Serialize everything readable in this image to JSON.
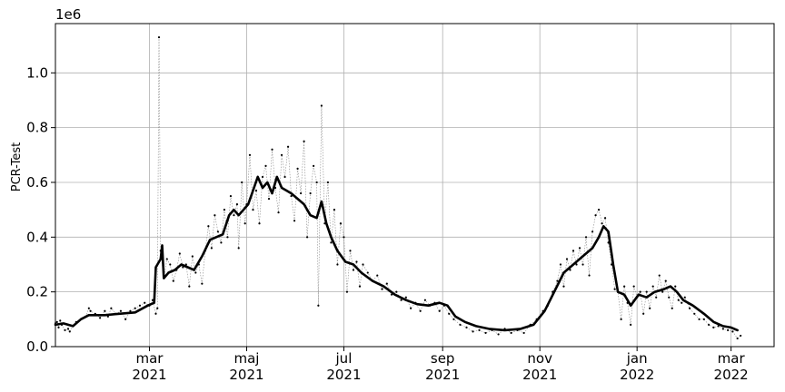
{
  "chart_data": {
    "type": "line",
    "ylabel": "PCR-Test",
    "y_offset_label": "1e6",
    "ylim": [
      0,
      1.18
    ],
    "yticks": [
      0.0,
      0.2,
      0.4,
      0.6,
      0.8,
      1.0
    ],
    "ytick_labels": [
      "0.0",
      "0.2",
      "0.4",
      "0.6",
      "0.8",
      "1.0"
    ],
    "xlim": [
      "2021-01-01",
      "2022-03-28"
    ],
    "xticks": [
      {
        "date": "2021-03-01",
        "month": "mar",
        "year": "2021"
      },
      {
        "date": "2021-05-01",
        "month": "maj",
        "year": "2021"
      },
      {
        "date": "2021-07-01",
        "month": "jul",
        "year": "2021"
      },
      {
        "date": "2021-09-01",
        "month": "sep",
        "year": "2021"
      },
      {
        "date": "2021-11-01",
        "month": "nov",
        "year": "2021"
      },
      {
        "date": "2022-01-01",
        "month": "jan",
        "year": "2022"
      },
      {
        "date": "2022-03-01",
        "month": "mar",
        "year": "2022"
      }
    ],
    "grid": true,
    "series": [
      {
        "style": "daily values, thin dotted grey line with small black point markers",
        "points": [
          [
            "2021-01-01",
            0.085
          ],
          [
            "2021-01-02",
            0.09
          ],
          [
            "2021-01-03",
            0.07
          ],
          [
            "2021-01-04",
            0.095
          ],
          [
            "2021-01-05",
            0.08
          ],
          [
            "2021-01-07",
            0.06
          ],
          [
            "2021-01-09",
            0.065
          ],
          [
            "2021-01-10",
            0.055
          ],
          [
            "2021-01-12",
            0.075
          ],
          [
            "2021-01-14",
            0.09
          ],
          [
            "2021-01-17",
            0.1
          ],
          [
            "2021-01-20",
            0.11
          ],
          [
            "2021-01-22",
            0.14
          ],
          [
            "2021-01-23",
            0.13
          ],
          [
            "2021-01-26",
            0.12
          ],
          [
            "2021-01-29",
            0.105
          ],
          [
            "2021-02-01",
            0.13
          ],
          [
            "2021-02-03",
            0.11
          ],
          [
            "2021-02-05",
            0.14
          ],
          [
            "2021-02-08",
            0.12
          ],
          [
            "2021-02-11",
            0.13
          ],
          [
            "2021-02-14",
            0.1
          ],
          [
            "2021-02-17",
            0.13
          ],
          [
            "2021-02-20",
            0.14
          ],
          [
            "2021-02-23",
            0.15
          ],
          [
            "2021-02-26",
            0.16
          ],
          [
            "2021-03-01",
            0.15
          ],
          [
            "2021-03-03",
            0.17
          ],
          [
            "2021-03-05",
            0.12
          ],
          [
            "2021-03-06",
            0.14
          ],
          [
            "2021-03-07",
            1.13
          ],
          [
            "2021-03-08",
            0.35
          ],
          [
            "2021-03-10",
            0.25
          ],
          [
            "2021-03-12",
            0.32
          ],
          [
            "2021-03-14",
            0.3
          ],
          [
            "2021-03-16",
            0.24
          ],
          [
            "2021-03-18",
            0.28
          ],
          [
            "2021-03-20",
            0.34
          ],
          [
            "2021-03-22",
            0.29
          ],
          [
            "2021-03-24",
            0.3
          ],
          [
            "2021-03-26",
            0.22
          ],
          [
            "2021-03-28",
            0.33
          ],
          [
            "2021-03-30",
            0.27
          ],
          [
            "2021-04-01",
            0.3
          ],
          [
            "2021-04-03",
            0.23
          ],
          [
            "2021-04-05",
            0.35
          ],
          [
            "2021-04-07",
            0.44
          ],
          [
            "2021-04-09",
            0.36
          ],
          [
            "2021-04-11",
            0.48
          ],
          [
            "2021-04-13",
            0.42
          ],
          [
            "2021-04-15",
            0.38
          ],
          [
            "2021-04-17",
            0.5
          ],
          [
            "2021-04-19",
            0.4
          ],
          [
            "2021-04-21",
            0.55
          ],
          [
            "2021-04-23",
            0.48
          ],
          [
            "2021-04-25",
            0.52
          ],
          [
            "2021-04-26",
            0.36
          ],
          [
            "2021-04-28",
            0.6
          ],
          [
            "2021-04-30",
            0.45
          ],
          [
            "2021-05-01",
            0.52
          ],
          [
            "2021-05-03",
            0.7
          ],
          [
            "2021-05-05",
            0.5
          ],
          [
            "2021-05-07",
            0.57
          ],
          [
            "2021-05-09",
            0.45
          ],
          [
            "2021-05-11",
            0.62
          ],
          [
            "2021-05-13",
            0.66
          ],
          [
            "2021-05-15",
            0.54
          ],
          [
            "2021-05-17",
            0.72
          ],
          [
            "2021-05-19",
            0.58
          ],
          [
            "2021-05-21",
            0.49
          ],
          [
            "2021-05-23",
            0.7
          ],
          [
            "2021-05-25",
            0.62
          ],
          [
            "2021-05-27",
            0.73
          ],
          [
            "2021-05-29",
            0.55
          ],
          [
            "2021-05-31",
            0.46
          ],
          [
            "2021-06-02",
            0.65
          ],
          [
            "2021-06-04",
            0.56
          ],
          [
            "2021-06-06",
            0.75
          ],
          [
            "2021-06-08",
            0.4
          ],
          [
            "2021-06-10",
            0.56
          ],
          [
            "2021-06-12",
            0.66
          ],
          [
            "2021-06-14",
            0.6
          ],
          [
            "2021-06-15",
            0.15
          ],
          [
            "2021-06-17",
            0.88
          ],
          [
            "2021-06-19",
            0.45
          ],
          [
            "2021-06-21",
            0.6
          ],
          [
            "2021-06-23",
            0.38
          ],
          [
            "2021-06-25",
            0.5
          ],
          [
            "2021-06-27",
            0.3
          ],
          [
            "2021-06-29",
            0.45
          ],
          [
            "2021-07-01",
            0.4
          ],
          [
            "2021-07-03",
            0.2
          ],
          [
            "2021-07-05",
            0.35
          ],
          [
            "2021-07-07",
            0.28
          ],
          [
            "2021-07-09",
            0.31
          ],
          [
            "2021-07-11",
            0.22
          ],
          [
            "2021-07-13",
            0.3
          ],
          [
            "2021-07-16",
            0.27
          ],
          [
            "2021-07-19",
            0.24
          ],
          [
            "2021-07-22",
            0.26
          ],
          [
            "2021-07-25",
            0.21
          ],
          [
            "2021-07-28",
            0.23
          ],
          [
            "2021-07-31",
            0.19
          ],
          [
            "2021-08-03",
            0.2
          ],
          [
            "2021-08-06",
            0.17
          ],
          [
            "2021-08-09",
            0.18
          ],
          [
            "2021-08-12",
            0.14
          ],
          [
            "2021-08-15",
            0.16
          ],
          [
            "2021-08-18",
            0.13
          ],
          [
            "2021-08-21",
            0.17
          ],
          [
            "2021-08-24",
            0.15
          ],
          [
            "2021-08-27",
            0.16
          ],
          [
            "2021-08-30",
            0.13
          ],
          [
            "2021-09-02",
            0.15
          ],
          [
            "2021-09-05",
            0.12
          ],
          [
            "2021-09-08",
            0.1
          ],
          [
            "2021-09-12",
            0.08
          ],
          [
            "2021-09-16",
            0.07
          ],
          [
            "2021-09-20",
            0.055
          ],
          [
            "2021-09-24",
            0.06
          ],
          [
            "2021-09-28",
            0.05
          ],
          [
            "2021-10-02",
            0.06
          ],
          [
            "2021-10-06",
            0.045
          ],
          [
            "2021-10-10",
            0.065
          ],
          [
            "2021-10-14",
            0.05
          ],
          [
            "2021-10-18",
            0.06
          ],
          [
            "2021-10-22",
            0.05
          ],
          [
            "2021-10-26",
            0.08
          ],
          [
            "2021-10-30",
            0.1
          ],
          [
            "2021-11-03",
            0.13
          ],
          [
            "2021-11-06",
            0.15
          ],
          [
            "2021-11-09",
            0.2
          ],
          [
            "2021-11-12",
            0.24
          ],
          [
            "2021-11-14",
            0.3
          ],
          [
            "2021-11-16",
            0.22
          ],
          [
            "2021-11-18",
            0.32
          ],
          [
            "2021-11-20",
            0.28
          ],
          [
            "2021-11-22",
            0.35
          ],
          [
            "2021-11-24",
            0.3
          ],
          [
            "2021-11-26",
            0.36
          ],
          [
            "2021-11-28",
            0.3
          ],
          [
            "2021-11-30",
            0.4
          ],
          [
            "2021-12-02",
            0.26
          ],
          [
            "2021-12-04",
            0.42
          ],
          [
            "2021-12-06",
            0.48
          ],
          [
            "2021-12-08",
            0.5
          ],
          [
            "2021-12-10",
            0.45
          ],
          [
            "2021-12-12",
            0.47
          ],
          [
            "2021-12-14",
            0.38
          ],
          [
            "2021-12-16",
            0.3
          ],
          [
            "2021-12-18",
            0.21
          ],
          [
            "2021-12-20",
            0.2
          ],
          [
            "2021-12-22",
            0.1
          ],
          [
            "2021-12-24",
            0.22
          ],
          [
            "2021-12-26",
            0.16
          ],
          [
            "2021-12-28",
            0.08
          ],
          [
            "2021-12-30",
            0.22
          ],
          [
            "2022-01-01",
            0.18
          ],
          [
            "2022-01-03",
            0.2
          ],
          [
            "2022-01-05",
            0.12
          ],
          [
            "2022-01-07",
            0.2
          ],
          [
            "2022-01-09",
            0.14
          ],
          [
            "2022-01-11",
            0.22
          ],
          [
            "2022-01-13",
            0.18
          ],
          [
            "2022-01-15",
            0.26
          ],
          [
            "2022-01-17",
            0.2
          ],
          [
            "2022-01-19",
            0.24
          ],
          [
            "2022-01-21",
            0.18
          ],
          [
            "2022-01-23",
            0.14
          ],
          [
            "2022-01-25",
            0.22
          ],
          [
            "2022-01-27",
            0.17
          ],
          [
            "2022-01-29",
            0.16
          ],
          [
            "2022-01-31",
            0.18
          ],
          [
            "2022-02-03",
            0.14
          ],
          [
            "2022-02-06",
            0.12
          ],
          [
            "2022-02-09",
            0.1
          ],
          [
            "2022-02-12",
            0.1
          ],
          [
            "2022-02-15",
            0.08
          ],
          [
            "2022-02-18",
            0.07
          ],
          [
            "2022-02-21",
            0.075
          ],
          [
            "2022-02-24",
            0.065
          ],
          [
            "2022-02-27",
            0.06
          ],
          [
            "2022-03-02",
            0.055
          ],
          [
            "2022-03-05",
            0.03
          ],
          [
            "2022-03-07",
            0.04
          ]
        ]
      },
      {
        "style": "7-day average, thick black line",
        "points": [
          [
            "2021-01-01",
            0.08
          ],
          [
            "2021-01-06",
            0.085
          ],
          [
            "2021-01-12",
            0.075
          ],
          [
            "2021-01-17",
            0.1
          ],
          [
            "2021-01-22",
            0.115
          ],
          [
            "2021-02-01",
            0.115
          ],
          [
            "2021-02-10",
            0.12
          ],
          [
            "2021-02-20",
            0.125
          ],
          [
            "2021-02-28",
            0.15
          ],
          [
            "2021-03-04",
            0.16
          ],
          [
            "2021-03-05",
            0.29
          ],
          [
            "2021-03-08",
            0.32
          ],
          [
            "2021-03-09",
            0.37
          ],
          [
            "2021-03-10",
            0.25
          ],
          [
            "2021-03-13",
            0.27
          ],
          [
            "2021-03-17",
            0.28
          ],
          [
            "2021-03-21",
            0.3
          ],
          [
            "2021-03-25",
            0.29
          ],
          [
            "2021-03-29",
            0.28
          ],
          [
            "2021-04-03",
            0.33
          ],
          [
            "2021-04-08",
            0.39
          ],
          [
            "2021-04-12",
            0.4
          ],
          [
            "2021-04-16",
            0.41
          ],
          [
            "2021-04-20",
            0.48
          ],
          [
            "2021-04-23",
            0.5
          ],
          [
            "2021-04-26",
            0.48
          ],
          [
            "2021-04-29",
            0.5
          ],
          [
            "2021-05-02",
            0.52
          ],
          [
            "2021-05-05",
            0.57
          ],
          [
            "2021-05-08",
            0.62
          ],
          [
            "2021-05-11",
            0.58
          ],
          [
            "2021-05-14",
            0.6
          ],
          [
            "2021-05-17",
            0.56
          ],
          [
            "2021-05-20",
            0.62
          ],
          [
            "2021-05-23",
            0.58
          ],
          [
            "2021-05-26",
            0.57
          ],
          [
            "2021-05-29",
            0.56
          ],
          [
            "2021-06-02",
            0.54
          ],
          [
            "2021-06-06",
            0.52
          ],
          [
            "2021-06-10",
            0.48
          ],
          [
            "2021-06-14",
            0.47
          ],
          [
            "2021-06-17",
            0.53
          ],
          [
            "2021-06-20",
            0.45
          ],
          [
            "2021-06-23",
            0.4
          ],
          [
            "2021-06-27",
            0.35
          ],
          [
            "2021-07-02",
            0.31
          ],
          [
            "2021-07-07",
            0.3
          ],
          [
            "2021-07-12",
            0.27
          ],
          [
            "2021-07-19",
            0.24
          ],
          [
            "2021-07-26",
            0.22
          ],
          [
            "2021-08-02",
            0.19
          ],
          [
            "2021-08-09",
            0.17
          ],
          [
            "2021-08-16",
            0.155
          ],
          [
            "2021-08-23",
            0.15
          ],
          [
            "2021-08-30",
            0.16
          ],
          [
            "2021-09-04",
            0.15
          ],
          [
            "2021-09-09",
            0.11
          ],
          [
            "2021-09-15",
            0.09
          ],
          [
            "2021-09-22",
            0.075
          ],
          [
            "2021-09-30",
            0.065
          ],
          [
            "2021-10-10",
            0.06
          ],
          [
            "2021-10-20",
            0.065
          ],
          [
            "2021-10-28",
            0.08
          ],
          [
            "2021-11-04",
            0.13
          ],
          [
            "2021-11-10",
            0.2
          ],
          [
            "2021-11-16",
            0.27
          ],
          [
            "2021-11-22",
            0.3
          ],
          [
            "2021-11-28",
            0.33
          ],
          [
            "2021-12-04",
            0.36
          ],
          [
            "2021-12-08",
            0.4
          ],
          [
            "2021-12-11",
            0.44
          ],
          [
            "2021-12-14",
            0.42
          ],
          [
            "2021-12-17",
            0.3
          ],
          [
            "2021-12-20",
            0.2
          ],
          [
            "2021-12-24",
            0.19
          ],
          [
            "2021-12-28",
            0.15
          ],
          [
            "2022-01-02",
            0.19
          ],
          [
            "2022-01-07",
            0.18
          ],
          [
            "2022-01-12",
            0.2
          ],
          [
            "2022-01-18",
            0.21
          ],
          [
            "2022-01-22",
            0.22
          ],
          [
            "2022-01-26",
            0.2
          ],
          [
            "2022-01-30",
            0.17
          ],
          [
            "2022-02-05",
            0.15
          ],
          [
            "2022-02-12",
            0.12
          ],
          [
            "2022-02-18",
            0.09
          ],
          [
            "2022-02-24",
            0.075
          ],
          [
            "2022-03-01",
            0.07
          ],
          [
            "2022-03-05",
            0.06
          ]
        ]
      }
    ]
  }
}
